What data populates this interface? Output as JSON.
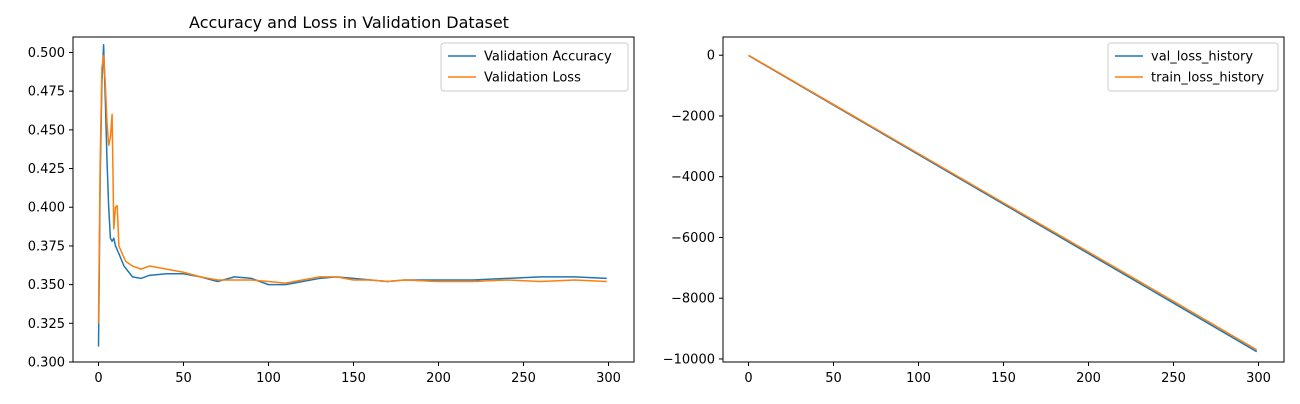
{
  "chart_data": [
    {
      "type": "line",
      "title": "Accuracy and Loss in Validation Dataset",
      "xlabel": "",
      "ylabel": "",
      "xlim": [
        -15,
        315
      ],
      "ylim": [
        0.3,
        0.51
      ],
      "x_ticks": [
        0,
        50,
        100,
        150,
        200,
        250,
        300
      ],
      "y_ticks": [
        0.3,
        0.325,
        0.35,
        0.375,
        0.4,
        0.425,
        0.45,
        0.475,
        0.5
      ],
      "y_tick_labels": [
        "0.300",
        "0.325",
        "0.350",
        "0.375",
        "0.400",
        "0.425",
        "0.450",
        "0.475",
        "0.500"
      ],
      "grid": false,
      "legend_position": "top-right",
      "series": [
        {
          "name": "Validation Accuracy",
          "color": "#1f77b4",
          "points": [
            [
              0,
              0.31
            ],
            [
              1,
              0.42
            ],
            [
              2,
              0.48
            ],
            [
              3,
              0.505
            ],
            [
              4,
              0.47
            ],
            [
              5,
              0.43
            ],
            [
              6,
              0.4
            ],
            [
              7,
              0.38
            ],
            [
              8,
              0.378
            ],
            [
              9,
              0.38
            ],
            [
              10,
              0.375
            ],
            [
              12,
              0.37
            ],
            [
              15,
              0.362
            ],
            [
              20,
              0.355
            ],
            [
              25,
              0.354
            ],
            [
              30,
              0.356
            ],
            [
              40,
              0.357
            ],
            [
              50,
              0.357
            ],
            [
              60,
              0.355
            ],
            [
              70,
              0.352
            ],
            [
              80,
              0.355
            ],
            [
              90,
              0.354
            ],
            [
              100,
              0.35
            ],
            [
              110,
              0.35
            ],
            [
              120,
              0.352
            ],
            [
              130,
              0.354
            ],
            [
              140,
              0.355
            ],
            [
              150,
              0.354
            ],
            [
              160,
              0.353
            ],
            [
              170,
              0.352
            ],
            [
              180,
              0.353
            ],
            [
              200,
              0.353
            ],
            [
              220,
              0.353
            ],
            [
              240,
              0.354
            ],
            [
              260,
              0.355
            ],
            [
              280,
              0.355
            ],
            [
              299,
              0.354
            ]
          ]
        },
        {
          "name": "Validation Loss",
          "color": "#ff7f0e",
          "points": [
            [
              0,
              0.325
            ],
            [
              1,
              0.43
            ],
            [
              2,
              0.49
            ],
            [
              3,
              0.498
            ],
            [
              4,
              0.48
            ],
            [
              5,
              0.455
            ],
            [
              6,
              0.44
            ],
            [
              7,
              0.445
            ],
            [
              8,
              0.46
            ],
            [
              9,
              0.386
            ],
            [
              10,
              0.4
            ],
            [
              11,
              0.401
            ],
            [
              12,
              0.375
            ],
            [
              14,
              0.37
            ],
            [
              16,
              0.365
            ],
            [
              20,
              0.362
            ],
            [
              25,
              0.36
            ],
            [
              30,
              0.362
            ],
            [
              40,
              0.36
            ],
            [
              50,
              0.358
            ],
            [
              60,
              0.355
            ],
            [
              70,
              0.353
            ],
            [
              80,
              0.353
            ],
            [
              90,
              0.353
            ],
            [
              100,
              0.352
            ],
            [
              110,
              0.351
            ],
            [
              120,
              0.353
            ],
            [
              130,
              0.355
            ],
            [
              140,
              0.355
            ],
            [
              150,
              0.353
            ],
            [
              160,
              0.353
            ],
            [
              170,
              0.352
            ],
            [
              180,
              0.353
            ],
            [
              200,
              0.352
            ],
            [
              220,
              0.352
            ],
            [
              240,
              0.353
            ],
            [
              260,
              0.352
            ],
            [
              280,
              0.353
            ],
            [
              299,
              0.352
            ]
          ]
        }
      ]
    },
    {
      "type": "line",
      "title": "",
      "xlabel": "",
      "ylabel": "",
      "xlim": [
        -15,
        315
      ],
      "ylim": [
        -10100,
        600
      ],
      "x_ticks": [
        0,
        50,
        100,
        150,
        200,
        250,
        300
      ],
      "y_ticks": [
        0,
        -2000,
        -4000,
        -6000,
        -8000,
        -10000
      ],
      "y_tick_labels": [
        "0",
        "−2000",
        "−4000",
        "−6000",
        "−8000",
        "−10000"
      ],
      "grid": false,
      "legend_position": "top-right",
      "series": [
        {
          "name": "val_loss_history",
          "color": "#1f77b4",
          "points": [
            [
              0,
              -10
            ],
            [
              50,
              -1640
            ],
            [
              100,
              -3270
            ],
            [
              150,
              -4900
            ],
            [
              200,
              -6530
            ],
            [
              250,
              -8160
            ],
            [
              299,
              -9760
            ]
          ]
        },
        {
          "name": "train_loss_history",
          "color": "#ff7f0e",
          "points": [
            [
              0,
              0
            ],
            [
              50,
              -1620
            ],
            [
              100,
              -3240
            ],
            [
              150,
              -4860
            ],
            [
              200,
              -6480
            ],
            [
              250,
              -8100
            ],
            [
              299,
              -9700
            ]
          ]
        }
      ]
    }
  ]
}
